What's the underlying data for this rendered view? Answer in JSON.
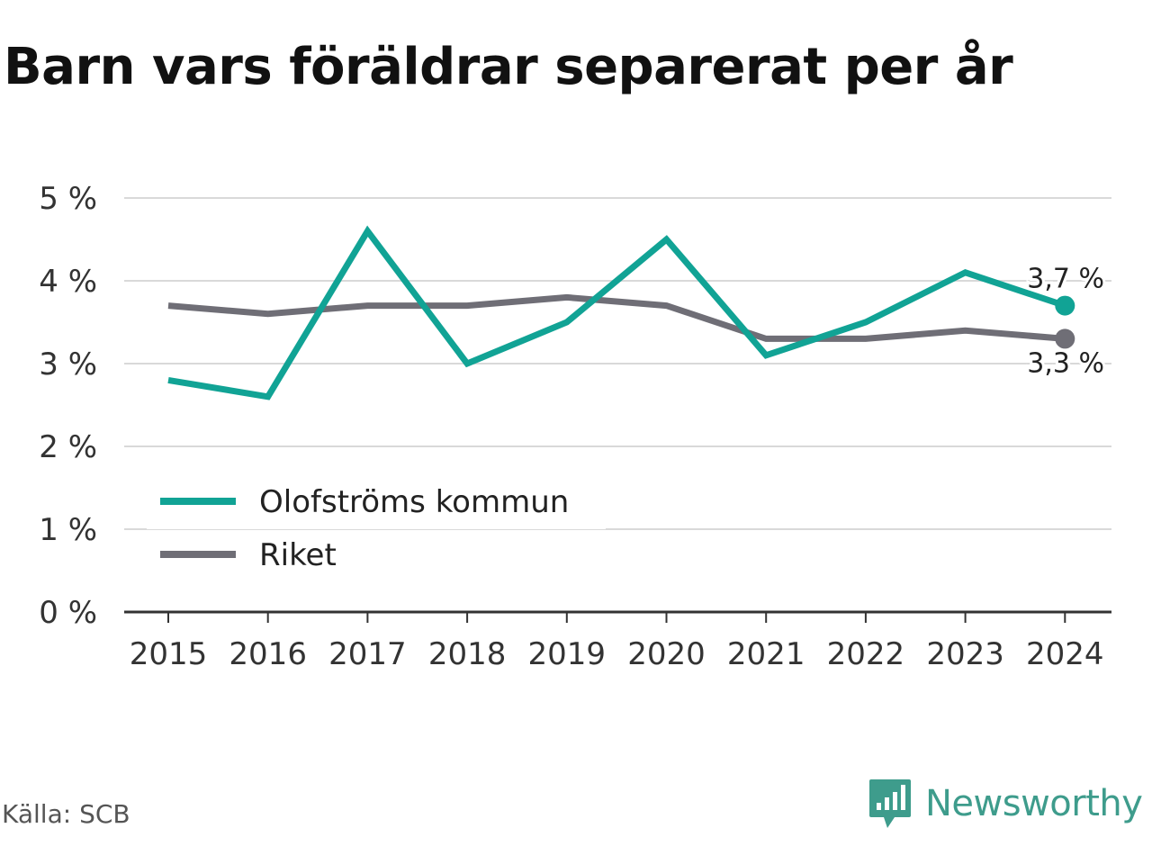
{
  "title": "Barn vars föräldrar separerat per år",
  "source": "Källa: SCB",
  "brand": {
    "name": "Newsworthy",
    "icon": "newsworthy-logo-icon"
  },
  "colors": {
    "kommun": "#11a395",
    "riket": "#6f6e76",
    "grid": "#d9d9d9",
    "axis": "#333333"
  },
  "chart_data": {
    "type": "line",
    "title": "Barn vars föräldrar separerat per år",
    "x": [
      "2015",
      "2016",
      "2017",
      "2018",
      "2019",
      "2020",
      "2021",
      "2022",
      "2023",
      "2024"
    ],
    "yticks": [
      "0 %",
      "1 %",
      "2 %",
      "3 %",
      "4 %",
      "5 %"
    ],
    "ylim": [
      0,
      5
    ],
    "grid": true,
    "legend_position": "bottom-left",
    "series": [
      {
        "name": "Olofströms kommun",
        "color": "#11a395",
        "values": [
          2.8,
          2.6,
          4.6,
          3.0,
          3.5,
          4.5,
          3.1,
          3.5,
          4.1,
          3.7
        ],
        "end_label": "3,7 %"
      },
      {
        "name": "Riket",
        "color": "#6f6e76",
        "values": [
          3.7,
          3.6,
          3.7,
          3.7,
          3.8,
          3.7,
          3.3,
          3.3,
          3.4,
          3.3
        ],
        "end_label": "3,3 %"
      }
    ]
  }
}
